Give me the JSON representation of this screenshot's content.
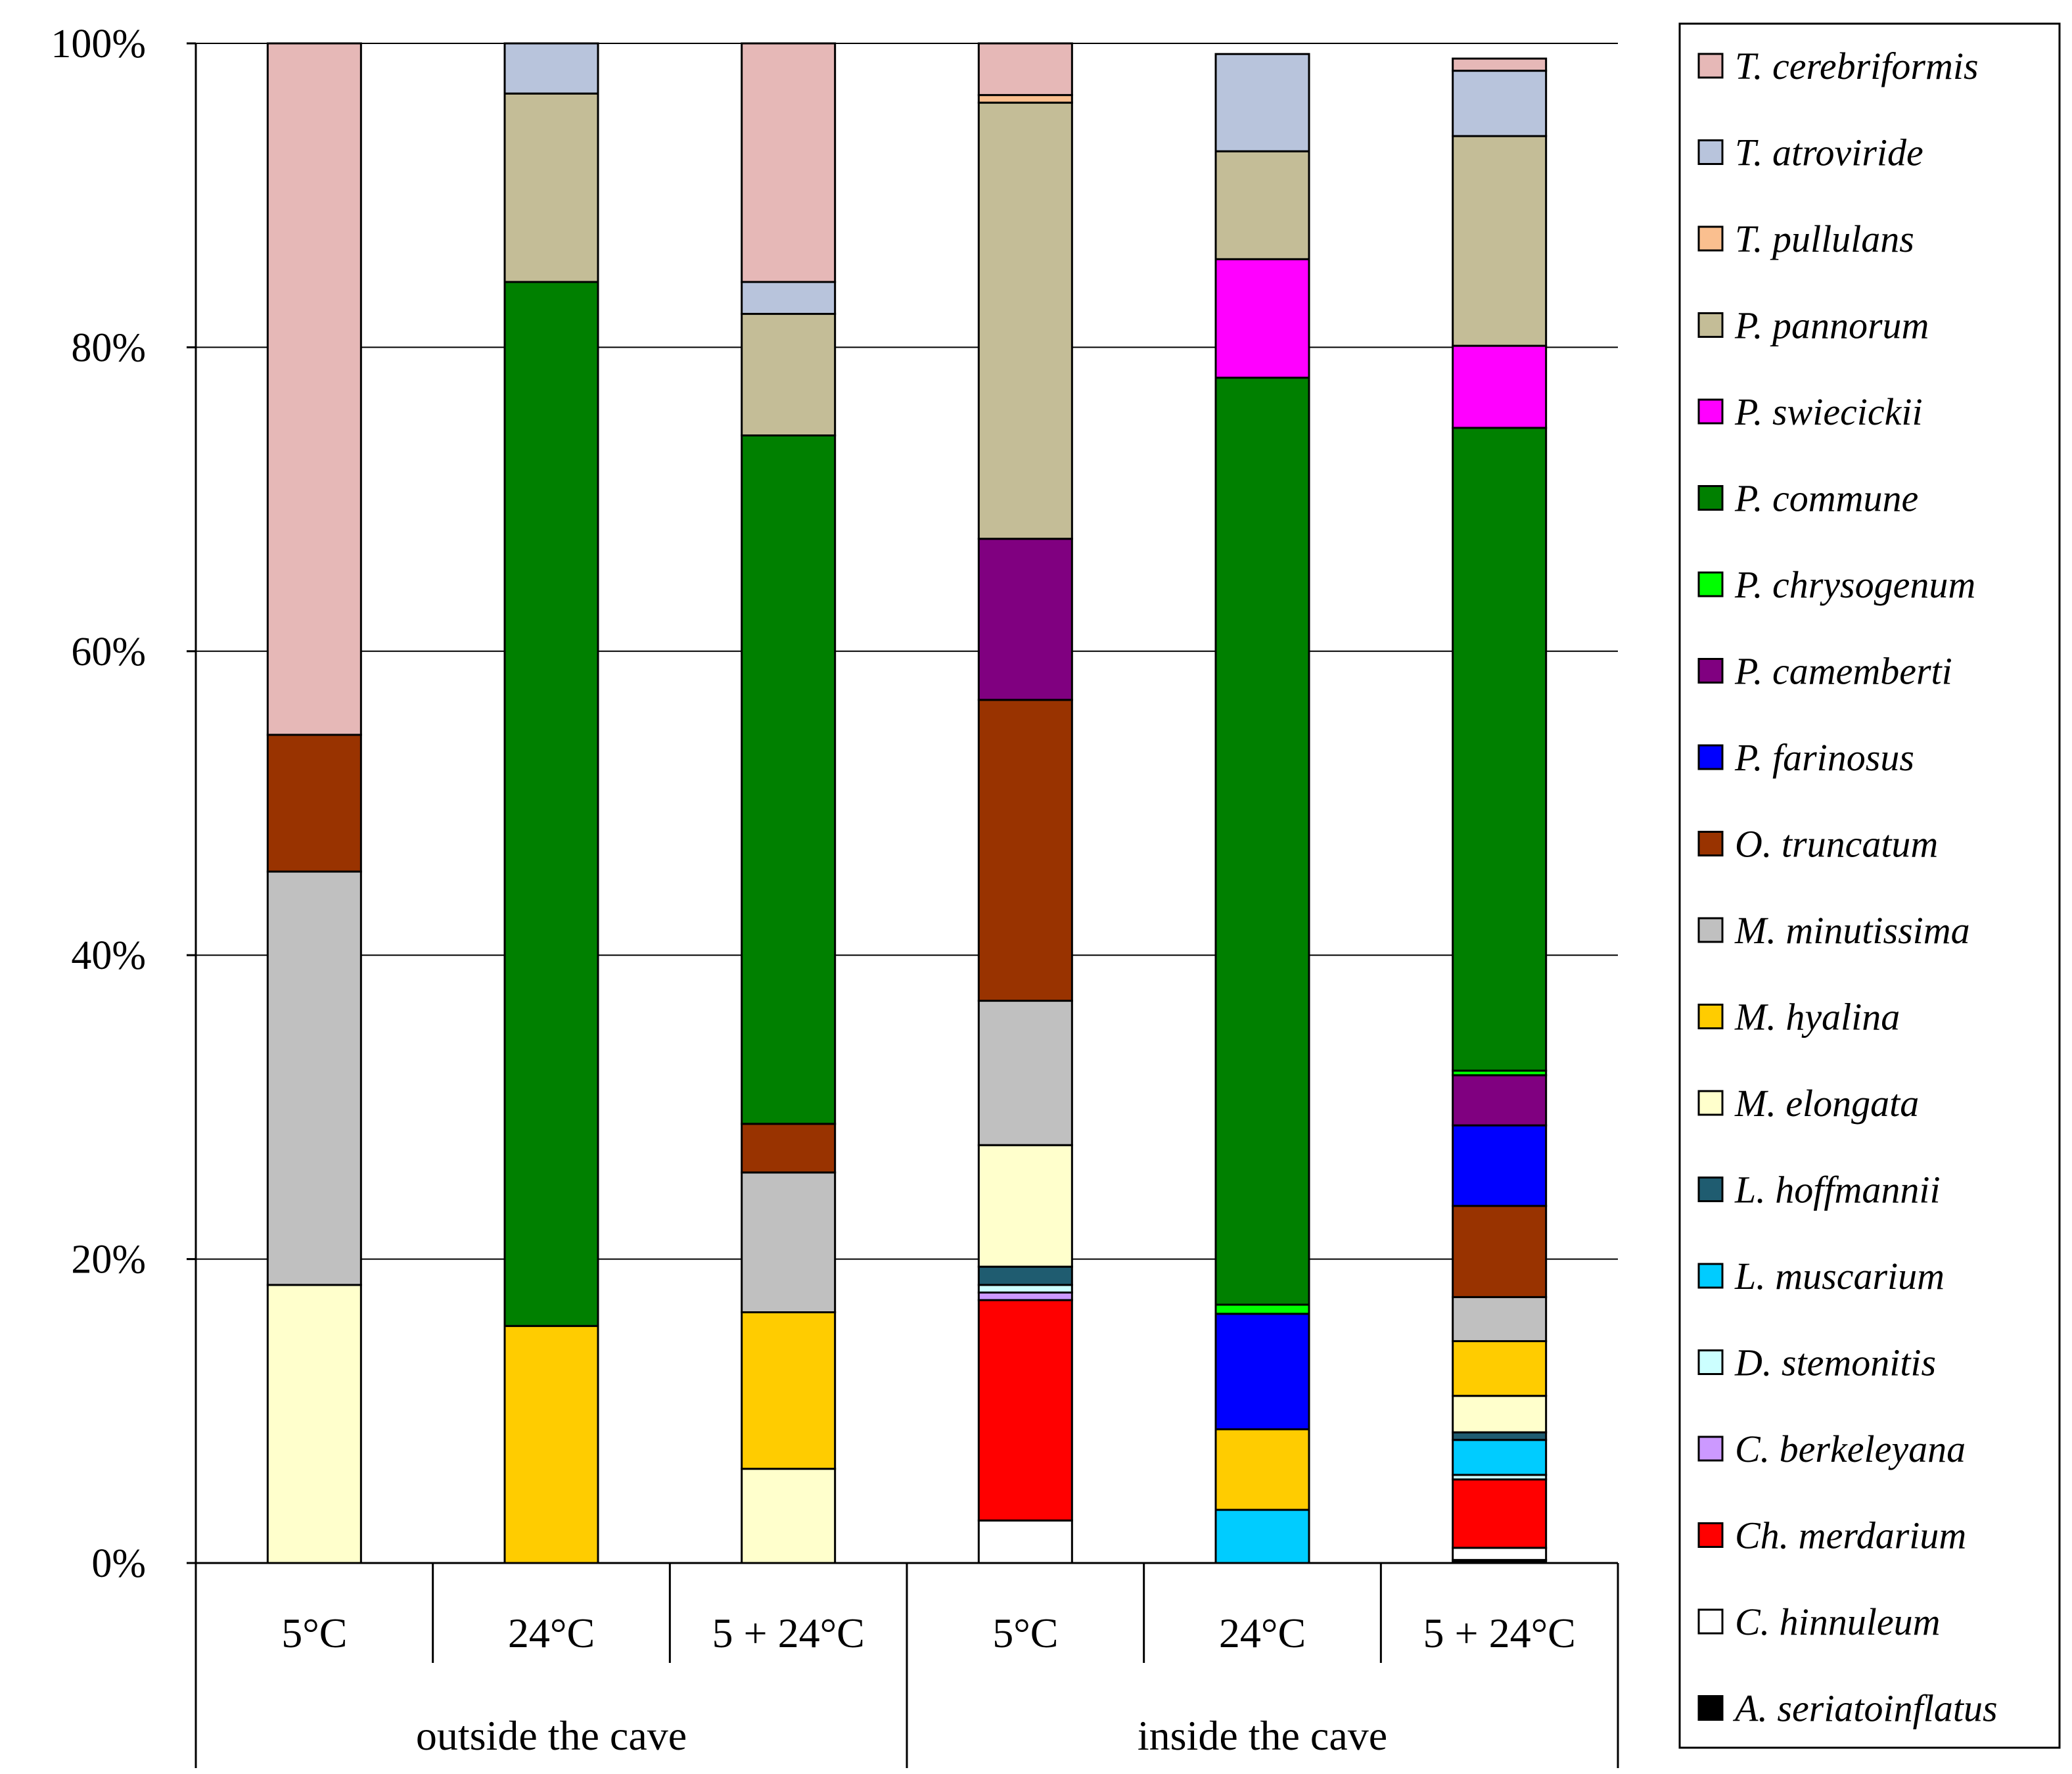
{
  "chart_data": {
    "type": "stacked-bar-percent",
    "title": "",
    "xlabel": "",
    "ylabel": "",
    "ylim": [
      0,
      100
    ],
    "yticks": [
      "0%",
      "20%",
      "40%",
      "60%",
      "80%",
      "100%"
    ],
    "ytick_values": [
      0,
      20,
      40,
      60,
      80,
      100
    ],
    "grid": true,
    "legend_position": "right",
    "groups": [
      {
        "label": "outside the cave",
        "categories": [
          "5°C",
          "24°C",
          "5 + 24°C"
        ]
      },
      {
        "label": "inside the cave",
        "categories": [
          "5°C",
          "24°C",
          "5 + 24°C"
        ]
      }
    ],
    "categories": [
      "5°C",
      "24°C",
      "5 + 24°C",
      "5°C",
      "24°C",
      "5 + 24°C"
    ],
    "series": [
      {
        "name": "A. seriatoinflatus",
        "color": "#000000",
        "values": [
          0,
          0,
          0,
          0,
          0,
          0.2
        ]
      },
      {
        "name": "C. hinnuleum",
        "color": "#ffffff",
        "values": [
          0,
          0,
          0,
          2.8,
          0,
          0.8
        ]
      },
      {
        "name": "Ch. merdarium",
        "color": "#ff0000",
        "values": [
          0,
          0,
          0,
          14.5,
          0,
          4.5
        ]
      },
      {
        "name": "C. berkeleyana",
        "color": "#cc99ff",
        "values": [
          0,
          0,
          0,
          0.5,
          0,
          0
        ]
      },
      {
        "name": "D. stemonitis",
        "color": "#ccffff",
        "values": [
          0,
          0,
          0,
          0.5,
          0,
          0.3
        ]
      },
      {
        "name": "L. muscarium",
        "color": "#00ccff",
        "values": [
          0,
          0,
          0,
          0,
          3.5,
          2.3
        ]
      },
      {
        "name": "L. hoffmannii",
        "color": "#1f5c70",
        "values": [
          0,
          0,
          0,
          1.2,
          0,
          0.5
        ]
      },
      {
        "name": "M. elongata",
        "color": "#ffffcc",
        "values": [
          18.3,
          0,
          6.2,
          8.0,
          0,
          2.4
        ]
      },
      {
        "name": "M. hyalina",
        "color": "#ffcc00",
        "values": [
          0,
          15.6,
          10.3,
          0,
          5.3,
          3.6
        ]
      },
      {
        "name": "M. minutissima",
        "color": "#c0c0c0",
        "values": [
          27.2,
          0,
          9.2,
          9.5,
          0,
          2.9
        ]
      },
      {
        "name": "O. truncatum",
        "color": "#993300",
        "values": [
          9.0,
          0,
          3.2,
          19.8,
          0,
          6.0
        ]
      },
      {
        "name": "P. farinosus",
        "color": "#0000ff",
        "values": [
          0,
          0,
          0,
          0,
          7.6,
          5.3
        ]
      },
      {
        "name": "P. camemberti",
        "color": "#800080",
        "values": [
          0,
          0,
          0,
          10.6,
          0,
          3.3
        ]
      },
      {
        "name": "P. chrysogenum",
        "color": "#00ff00",
        "values": [
          0,
          0,
          0,
          0,
          0.6,
          0.3
        ]
      },
      {
        "name": "P. commune",
        "color": "#008000",
        "values": [
          0,
          68.7,
          45.3,
          0,
          61.0,
          42.3
        ]
      },
      {
        "name": "P. swiecickii",
        "color": "#ff00ff",
        "values": [
          0,
          0,
          0,
          0,
          7.8,
          5.4
        ]
      },
      {
        "name": "P. pannorum",
        "color": "#c4bd97",
        "values": [
          0,
          12.4,
          8.0,
          28.7,
          7.1,
          13.8
        ]
      },
      {
        "name": "T. pullulans",
        "color": "#fabf8f",
        "values": [
          0,
          0,
          0,
          0.5,
          0,
          0
        ]
      },
      {
        "name": "T. atroviride",
        "color": "#b8c4dc",
        "values": [
          0,
          3.3,
          2.1,
          0,
          6.4,
          4.3
        ]
      },
      {
        "name": "T. cerebriformis",
        "color": "#e6b8b7",
        "values": [
          45.5,
          0,
          15.7,
          3.4,
          0,
          0.8
        ]
      }
    ],
    "legend_order": [
      "T. cerebriformis",
      "T. atroviride",
      "T. pullulans",
      "P. pannorum",
      "P. swiecickii",
      "P. commune",
      "P. chrysogenum",
      "P. camemberti",
      "P. farinosus",
      "O. truncatum",
      "M. minutissima",
      "M. hyalina",
      "M. elongata",
      "L. hoffmannii",
      "L. muscarium",
      "D. stemonitis",
      "C. berkeleyana",
      "Ch. merdarium",
      "C. hinnuleum",
      "A. seriatoinflatus"
    ]
  }
}
